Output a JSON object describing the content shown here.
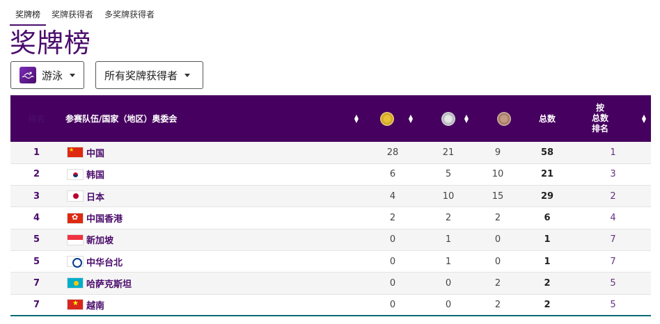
{
  "tabs": [
    {
      "label": "奖牌榜",
      "active": true
    },
    {
      "label": "奖牌获得者",
      "active": false
    },
    {
      "label": "多奖牌获得者",
      "active": false
    }
  ],
  "title": "奖牌榜",
  "filters": {
    "sport": {
      "label": "游泳",
      "icon": "swimming-icon"
    },
    "winners": {
      "label": "所有奖牌获得者"
    }
  },
  "table": {
    "headers": {
      "rank": "排名",
      "team": "参赛队伍/国家（地区）奥委会",
      "gold": "gold-medal-icon",
      "silver": "silver-medal-icon",
      "bronze": "bronze-medal-icon",
      "total": "总数",
      "sort_line1": "按",
      "sort_line2": "总数",
      "sort_line3": "排名"
    },
    "rows": [
      {
        "rank": "1",
        "flag": "cn",
        "team": "中国",
        "gold": "28",
        "silver": "21",
        "bronze": "9",
        "total": "58",
        "total_rank": "1"
      },
      {
        "rank": "2",
        "flag": "kr",
        "team": "韩国",
        "gold": "6",
        "silver": "5",
        "bronze": "10",
        "total": "21",
        "total_rank": "3"
      },
      {
        "rank": "3",
        "flag": "jp",
        "team": "日本",
        "gold": "4",
        "silver": "10",
        "bronze": "15",
        "total": "29",
        "total_rank": "2"
      },
      {
        "rank": "4",
        "flag": "hk",
        "team": "中国香港",
        "gold": "2",
        "silver": "2",
        "bronze": "2",
        "total": "6",
        "total_rank": "4"
      },
      {
        "rank": "5",
        "flag": "sg",
        "team": "新加坡",
        "gold": "0",
        "silver": "1",
        "bronze": "0",
        "total": "1",
        "total_rank": "7"
      },
      {
        "rank": "5",
        "flag": "tpe",
        "team": "中华台北",
        "gold": "0",
        "silver": "1",
        "bronze": "0",
        "total": "1",
        "total_rank": "7"
      },
      {
        "rank": "7",
        "flag": "kz",
        "team": "哈萨克斯坦",
        "gold": "0",
        "silver": "0",
        "bronze": "2",
        "total": "2",
        "total_rank": "5"
      },
      {
        "rank": "7",
        "flag": "vn",
        "team": "越南",
        "gold": "0",
        "silver": "0",
        "bronze": "2",
        "total": "2",
        "total_rank": "5"
      }
    ]
  },
  "colors": {
    "accent": "#4a0b6b",
    "header_bg": "#46005f",
    "gold": "#d4a820",
    "silver": "#c0c0c8",
    "bronze": "#b08068"
  }
}
